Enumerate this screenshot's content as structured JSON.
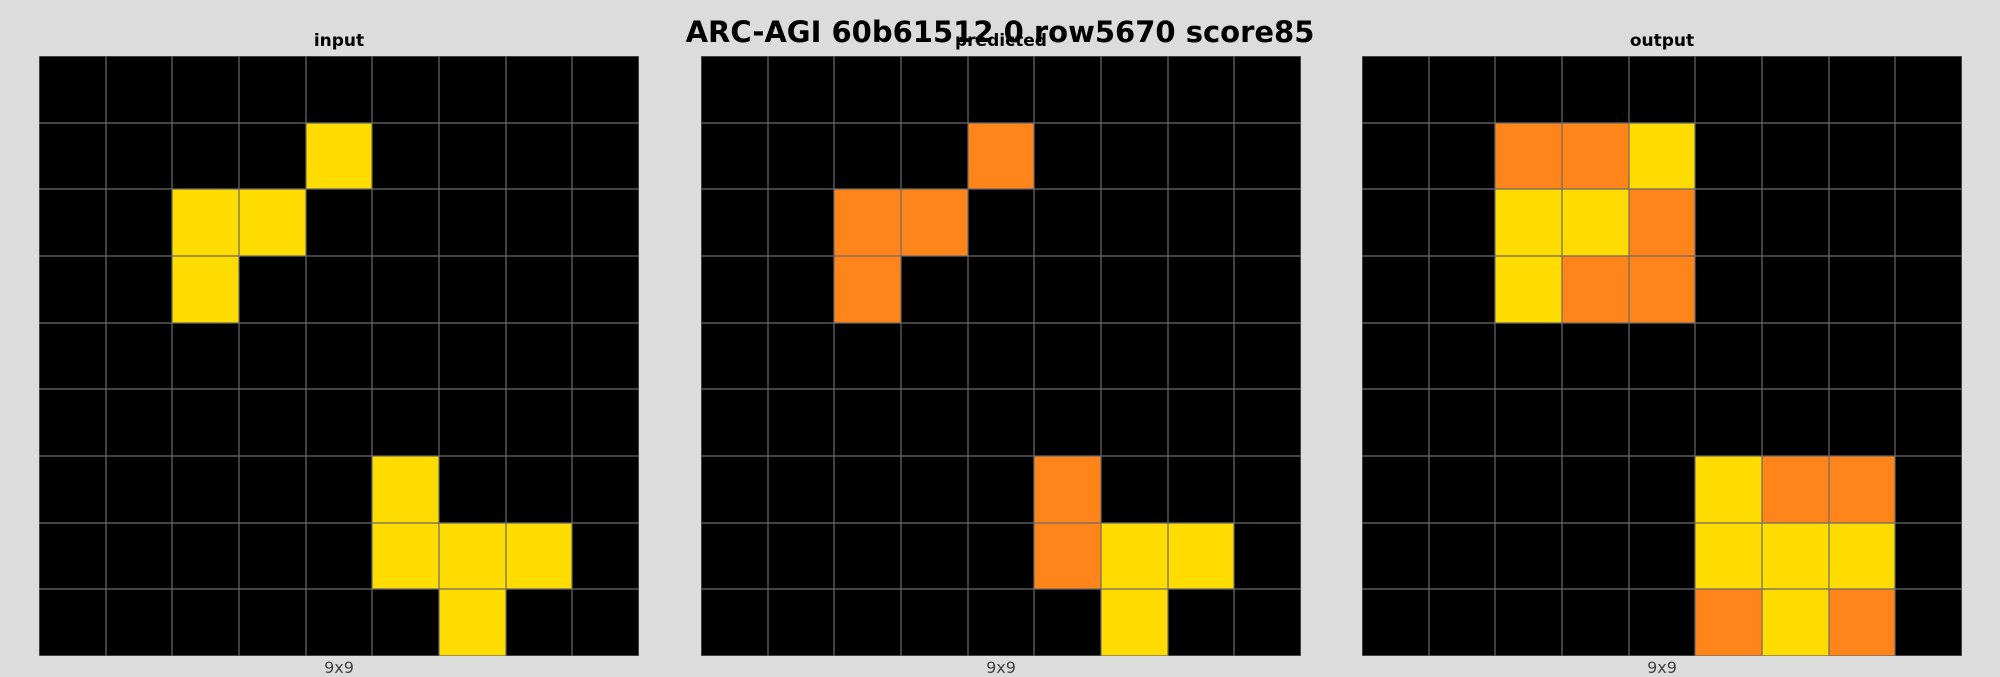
{
  "title": "ARC-AGI 60b61512 0 row5670 score85",
  "palette": {
    "0": "#000000",
    "4": "#FFDC00",
    "7": "#FF851B"
  },
  "panels": [
    {
      "label": "input",
      "dims": "9x9",
      "grid": [
        [
          0,
          0,
          0,
          0,
          0,
          0,
          0,
          0,
          0
        ],
        [
          0,
          0,
          0,
          0,
          4,
          0,
          0,
          0,
          0
        ],
        [
          0,
          0,
          4,
          4,
          0,
          0,
          0,
          0,
          0
        ],
        [
          0,
          0,
          4,
          0,
          0,
          0,
          0,
          0,
          0
        ],
        [
          0,
          0,
          0,
          0,
          0,
          0,
          0,
          0,
          0
        ],
        [
          0,
          0,
          0,
          0,
          0,
          0,
          0,
          0,
          0
        ],
        [
          0,
          0,
          0,
          0,
          0,
          4,
          0,
          0,
          0
        ],
        [
          0,
          0,
          0,
          0,
          0,
          4,
          4,
          4,
          0
        ],
        [
          0,
          0,
          0,
          0,
          0,
          0,
          4,
          0,
          0
        ]
      ]
    },
    {
      "label": "predicted",
      "dims": "9x9",
      "grid": [
        [
          0,
          0,
          0,
          0,
          0,
          0,
          0,
          0,
          0
        ],
        [
          0,
          0,
          0,
          0,
          7,
          0,
          0,
          0,
          0
        ],
        [
          0,
          0,
          7,
          7,
          0,
          0,
          0,
          0,
          0
        ],
        [
          0,
          0,
          7,
          0,
          0,
          0,
          0,
          0,
          0
        ],
        [
          0,
          0,
          0,
          0,
          0,
          0,
          0,
          0,
          0
        ],
        [
          0,
          0,
          0,
          0,
          0,
          0,
          0,
          0,
          0
        ],
        [
          0,
          0,
          0,
          0,
          0,
          7,
          0,
          0,
          0
        ],
        [
          0,
          0,
          0,
          0,
          0,
          7,
          4,
          4,
          0
        ],
        [
          0,
          0,
          0,
          0,
          0,
          0,
          4,
          0,
          0
        ]
      ]
    },
    {
      "label": "output",
      "dims": "9x9",
      "grid": [
        [
          0,
          0,
          0,
          0,
          0,
          0,
          0,
          0,
          0
        ],
        [
          0,
          0,
          7,
          7,
          4,
          0,
          0,
          0,
          0
        ],
        [
          0,
          0,
          4,
          4,
          7,
          0,
          0,
          0,
          0
        ],
        [
          0,
          0,
          4,
          7,
          7,
          0,
          0,
          0,
          0
        ],
        [
          0,
          0,
          0,
          0,
          0,
          0,
          0,
          0,
          0
        ],
        [
          0,
          0,
          0,
          0,
          0,
          0,
          0,
          0,
          0
        ],
        [
          0,
          0,
          0,
          0,
          0,
          4,
          7,
          7,
          0
        ],
        [
          0,
          0,
          0,
          0,
          0,
          4,
          4,
          4,
          0
        ],
        [
          0,
          0,
          0,
          0,
          0,
          7,
          4,
          7,
          0
        ]
      ]
    }
  ]
}
